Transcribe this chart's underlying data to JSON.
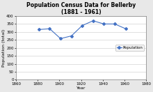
{
  "title": "Population Census Data for Bellerby\n(1881 - 1961)",
  "xlabel": "Year",
  "ylabel": "Population (total)",
  "years": [
    1881,
    1891,
    1901,
    1911,
    1921,
    1931,
    1941,
    1951,
    1961
  ],
  "population": [
    315,
    320,
    258,
    275,
    340,
    370,
    350,
    350,
    320
  ],
  "xlim": [
    1860,
    1980
  ],
  "ylim": [
    0,
    400
  ],
  "xticks": [
    1860,
    1880,
    1900,
    1920,
    1940,
    1960,
    1980
  ],
  "yticks": [
    0,
    50,
    100,
    150,
    200,
    250,
    300,
    350,
    400
  ],
  "line_color": "#4472C4",
  "marker": "D",
  "marker_size": 2.0,
  "line_width": 0.8,
  "legend_label": "Population",
  "fig_bg_color": "#E8E8E8",
  "plot_bg_color": "#FFFFFF",
  "title_fontsize": 5.5,
  "axis_label_fontsize": 4.5,
  "tick_fontsize": 4.0,
  "legend_fontsize": 4.0,
  "grid_color": "#C8C8C8",
  "spine_color": "#808080"
}
